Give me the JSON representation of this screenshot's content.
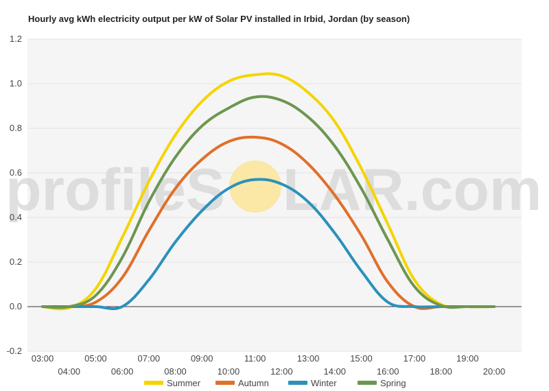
{
  "chart_data": {
    "type": "line",
    "title": "Hourly avg kWh electricity output per kW of Solar PV installed in Irbid, Jordan (by season)",
    "xlabel": "",
    "ylabel": "",
    "x": [
      "03:00",
      "04:00",
      "05:00",
      "06:00",
      "07:00",
      "08:00",
      "09:00",
      "10:00",
      "11:00",
      "12:00",
      "13:00",
      "14:00",
      "15:00",
      "16:00",
      "17:00",
      "18:00",
      "19:00",
      "20:00"
    ],
    "ylim": [
      -0.2,
      1.2
    ],
    "yticks": [
      "-0.2",
      "0.0",
      "0.2",
      "0.4",
      "0.6",
      "0.8",
      "1.0",
      "1.2"
    ],
    "grid": true,
    "legend_position": "bottom",
    "series": [
      {
        "name": "Summer",
        "color": "#f5d400",
        "values": [
          0,
          -0.005,
          0.08,
          0.31,
          0.56,
          0.77,
          0.92,
          1.01,
          1.04,
          1.035,
          0.96,
          0.83,
          0.62,
          0.37,
          0.12,
          0.01,
          0.0,
          0.0
        ]
      },
      {
        "name": "Autumn",
        "color": "#e0702a",
        "values": [
          0,
          0,
          0.02,
          0.13,
          0.34,
          0.53,
          0.66,
          0.74,
          0.76,
          0.73,
          0.64,
          0.5,
          0.32,
          0.11,
          0.0,
          0.0,
          0.0,
          0.0
        ]
      },
      {
        "name": "Winter",
        "color": "#2b91bb",
        "values": [
          0,
          0,
          0,
          0.0,
          0.12,
          0.29,
          0.43,
          0.53,
          0.57,
          0.55,
          0.47,
          0.33,
          0.16,
          0.02,
          0.0,
          0.0,
          0.0,
          0.0
        ]
      },
      {
        "name": "Spring",
        "color": "#6d9650",
        "values": [
          0,
          0,
          0.05,
          0.22,
          0.47,
          0.67,
          0.81,
          0.89,
          0.94,
          0.925,
          0.85,
          0.72,
          0.53,
          0.3,
          0.09,
          0.005,
          0.0,
          0.0
        ]
      }
    ]
  },
  "watermark": {
    "left": "profileS",
    "right": "LAR.com",
    "sun_color": "#fbe7a6"
  },
  "colors": {
    "grid": "#e2e2e2",
    "plot_bg": "#f5f5f5",
    "zero_line": "#333333"
  }
}
